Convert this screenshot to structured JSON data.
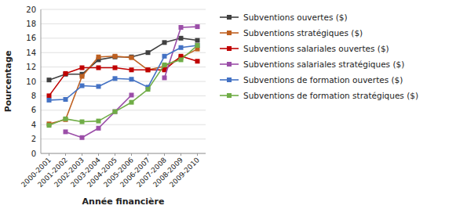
{
  "chart_data": {
    "type": "line",
    "categories": [
      "2000-2001",
      "2001-2002",
      "2002-2003",
      "2003-2004",
      "2004-2005",
      "2005-2006",
      "2006-2007",
      "2007-2008",
      "2008-2009",
      "2009-2010"
    ],
    "series": [
      {
        "name": "Subventions ouvertes ($)",
        "color": "#404040",
        "marker": "square",
        "values": [
          10.2,
          11.0,
          11.0,
          13.0,
          13.4,
          13.4,
          14.0,
          15.4,
          16.0,
          15.7
        ]
      },
      {
        "name": "Subventions stratégiques ($)",
        "color": "#bf6020",
        "marker": "square",
        "values": [
          4.1,
          4.7,
          10.7,
          13.4,
          13.5,
          13.3,
          11.6,
          12.1,
          13.3,
          14.5
        ]
      },
      {
        "name": "Subventions salariales ouvertes ($)",
        "color": "#c00000",
        "marker": "square",
        "values": [
          8.0,
          11.1,
          11.9,
          11.9,
          11.9,
          11.6,
          11.6,
          11.6,
          13.5,
          12.8
        ]
      },
      {
        "name": "Subventions salariales stratégiques ($)",
        "color": "#9b4ea8",
        "marker": "square",
        "values": [
          null,
          3.0,
          2.2,
          3.5,
          5.8,
          8.1,
          null,
          10.5,
          17.5,
          17.6
        ]
      },
      {
        "name": "Subventions de formation ouvertes ($)",
        "color": "#4472c4",
        "marker": "square",
        "values": [
          7.4,
          7.5,
          9.4,
          9.3,
          10.4,
          10.3,
          9.2,
          13.5,
          14.7,
          15.0
        ]
      },
      {
        "name": "Subventions de formation stratégiques ($)",
        "color": "#70ad47",
        "marker": "square",
        "values": [
          3.9,
          4.8,
          4.4,
          4.5,
          5.8,
          7.1,
          8.9,
          12.3,
          13.0,
          15.0
        ]
      }
    ],
    "xlabel": "Année financière",
    "ylabel": "Pourcentage",
    "ylim": [
      0,
      20
    ],
    "yticks": [
      0,
      2,
      4,
      6,
      8,
      10,
      12,
      14,
      16,
      18,
      20
    ],
    "grid": true,
    "legend": "right"
  }
}
